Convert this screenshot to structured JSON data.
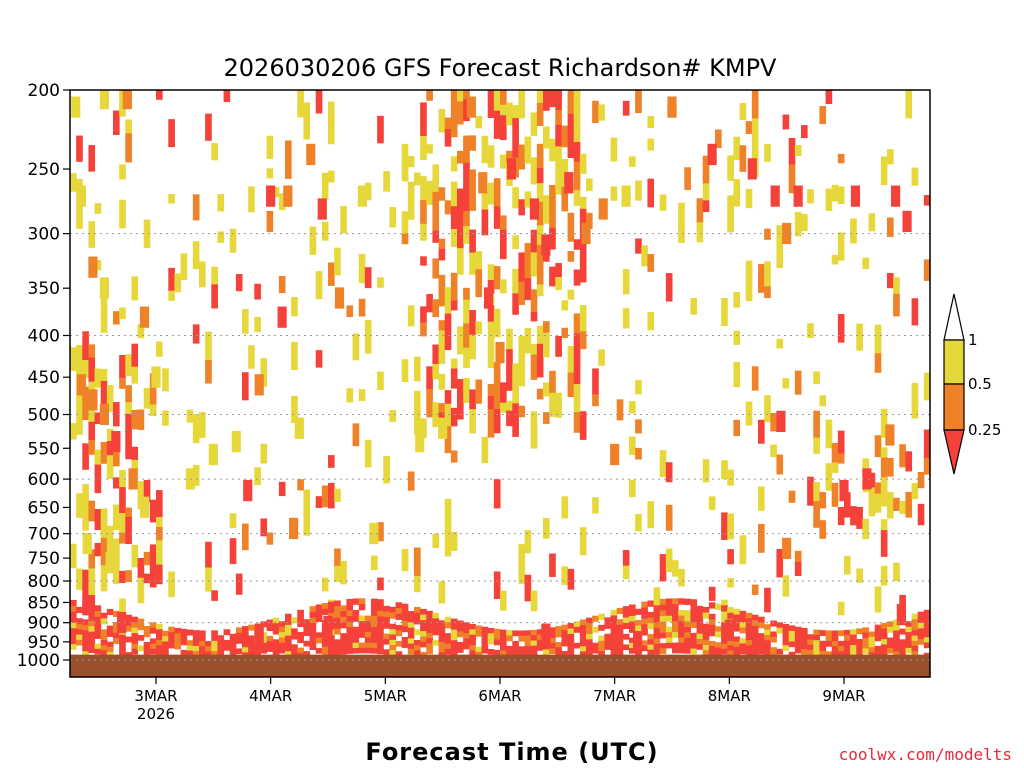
{
  "chart_data": {
    "type": "heatmap",
    "title": "2026030206 GFS Forecast Richardson# KMPV",
    "xlabel": "Forecast Time (UTC)",
    "ylabel": "",
    "credit": "coolwx.com/modelts",
    "y_axis": {
      "scale": "log-pressure",
      "ticks": [
        200,
        250,
        300,
        350,
        400,
        450,
        500,
        550,
        600,
        650,
        700,
        750,
        800,
        850,
        900,
        950,
        1000
      ],
      "gridlines": [
        300,
        400,
        500,
        600,
        700,
        800,
        900,
        1000
      ],
      "range": [
        200,
        1000
      ]
    },
    "x_axis": {
      "tick_labels": [
        "3MAR",
        "4MAR",
        "5MAR",
        "6MAR",
        "7MAR",
        "8MAR",
        "9MAR"
      ],
      "first_tick_sublabel": "2026",
      "range_days": [
        2.25,
        9.75
      ]
    },
    "legend": {
      "placement": "right",
      "levels": [
        "1",
        "0.5",
        "0.25"
      ],
      "colors": {
        "above_1": "#ffffff",
        "0.5_to_1": "#e6d83a",
        "0.25_to_0.5": "#ef8228",
        "below_0.25": "#f4423a"
      }
    },
    "ground_color": "#9a502c",
    "cells": [
      {
        "t": 2.3,
        "p": 210,
        "ri": 0.6
      },
      {
        "t": 2.55,
        "p": 205,
        "ri": 0.6
      },
      {
        "t": 2.75,
        "p": 205,
        "ri": 0.3
      },
      {
        "t": 2.35,
        "p": 270,
        "ri": 0.6
      },
      {
        "t": 2.45,
        "p": 330,
        "ri": 0.3
      },
      {
        "t": 2.55,
        "p": 350,
        "ri": 0.6
      },
      {
        "t": 2.2,
        "p": 420,
        "ri": 0.6
      },
      {
        "t": 2.35,
        "p": 460,
        "ri": 0.3
      },
      {
        "t": 2.45,
        "p": 480,
        "ri": 0.3
      },
      {
        "t": 2.55,
        "p": 500,
        "ri": 0.3
      },
      {
        "t": 2.65,
        "p": 540,
        "ri": 0.2
      },
      {
        "t": 2.8,
        "p": 600,
        "ri": 0.3
      },
      {
        "t": 2.9,
        "p": 650,
        "ri": 0.6
      },
      {
        "t": 2.4,
        "p": 720,
        "ri": 0.6
      },
      {
        "t": 2.6,
        "p": 760,
        "ri": 0.6
      },
      {
        "t": 2.9,
        "p": 380,
        "ri": 0.3
      },
      {
        "t": 3.0,
        "p": 450,
        "ri": 0.6
      },
      {
        "t": 3.3,
        "p": 600,
        "ri": 0.6
      },
      {
        "t": 3.5,
        "p": 560,
        "ri": 0.6
      },
      {
        "t": 3.7,
        "p": 540,
        "ri": 0.6
      },
      {
        "t": 3.8,
        "p": 620,
        "ri": 0.2
      },
      {
        "t": 3.9,
        "p": 460,
        "ri": 0.3
      },
      {
        "t": 4.0,
        "p": 270,
        "ri": 0.2
      },
      {
        "t": 4.15,
        "p": 270,
        "ri": 0.3
      },
      {
        "t": 4.1,
        "p": 380,
        "ri": 0.2
      },
      {
        "t": 4.25,
        "p": 520,
        "ri": 0.6
      },
      {
        "t": 4.2,
        "p": 690,
        "ri": 0.3
      },
      {
        "t": 4.35,
        "p": 240,
        "ri": 0.3
      },
      {
        "t": 4.45,
        "p": 280,
        "ri": 0.2
      },
      {
        "t": 4.6,
        "p": 360,
        "ri": 0.3
      },
      {
        "t": 4.8,
        "p": 270,
        "ri": 0.6
      },
      {
        "t": 4.9,
        "p": 700,
        "ri": 0.6
      },
      {
        "t": 5.3,
        "p": 540,
        "ri": 0.6
      },
      {
        "t": 5.5,
        "p": 520,
        "ri": 0.6
      },
      {
        "t": 5.75,
        "p": 210,
        "ri": 0.3
      },
      {
        "t": 5.85,
        "p": 260,
        "ri": 0.3
      },
      {
        "t": 5.9,
        "p": 360,
        "ri": 0.2
      },
      {
        "t": 6.0,
        "p": 420,
        "ri": 0.3
      },
      {
        "t": 6.1,
        "p": 250,
        "ri": 0.2
      },
      {
        "t": 6.3,
        "p": 280,
        "ri": 0.2
      },
      {
        "t": 6.4,
        "p": 310,
        "ri": 0.2
      },
      {
        "t": 6.6,
        "p": 260,
        "ri": 0.2
      },
      {
        "t": 6.75,
        "p": 300,
        "ri": 0.3
      },
      {
        "t": 6.9,
        "p": 280,
        "ri": 0.3
      },
      {
        "t": 7.1,
        "p": 270,
        "ri": 0.6
      },
      {
        "t": 7.0,
        "p": 560,
        "ri": 0.3
      },
      {
        "t": 7.5,
        "p": 210,
        "ri": 0.3
      },
      {
        "t": 7.85,
        "p": 240,
        "ri": 0.2
      },
      {
        "t": 8.2,
        "p": 250,
        "ri": 0.2
      },
      {
        "t": 8.4,
        "p": 270,
        "ri": 0.2
      },
      {
        "t": 8.5,
        "p": 300,
        "ri": 0.3
      },
      {
        "t": 8.6,
        "p": 270,
        "ri": 0.2
      },
      {
        "t": 9.1,
        "p": 270,
        "ri": 0.2
      },
      {
        "t": 9.45,
        "p": 270,
        "ri": 0.2
      },
      {
        "t": 9.55,
        "p": 290,
        "ri": 0.2
      },
      {
        "t": 8.45,
        "p": 510,
        "ri": 0.2
      },
      {
        "t": 9.4,
        "p": 530,
        "ri": 0.3
      },
      {
        "t": 9.2,
        "p": 600,
        "ri": 0.2
      },
      {
        "t": 9.0,
        "p": 620,
        "ri": 0.2
      },
      {
        "t": 8.5,
        "p": 730,
        "ri": 0.3
      },
      {
        "t": 9.5,
        "p": 880,
        "ri": 0.2
      },
      {
        "t": 8.0,
        "p": 920,
        "ri": 0.2
      },
      {
        "t": 2.7,
        "p": 900,
        "ri": 0.2
      },
      {
        "t": 3.9,
        "p": 930,
        "ri": 0.2
      },
      {
        "t": 4.5,
        "p": 910,
        "ri": 0.2
      },
      {
        "t": 6.4,
        "p": 930,
        "ri": 0.2
      },
      {
        "t": 7.2,
        "p": 950,
        "ri": 0.2
      }
    ]
  }
}
